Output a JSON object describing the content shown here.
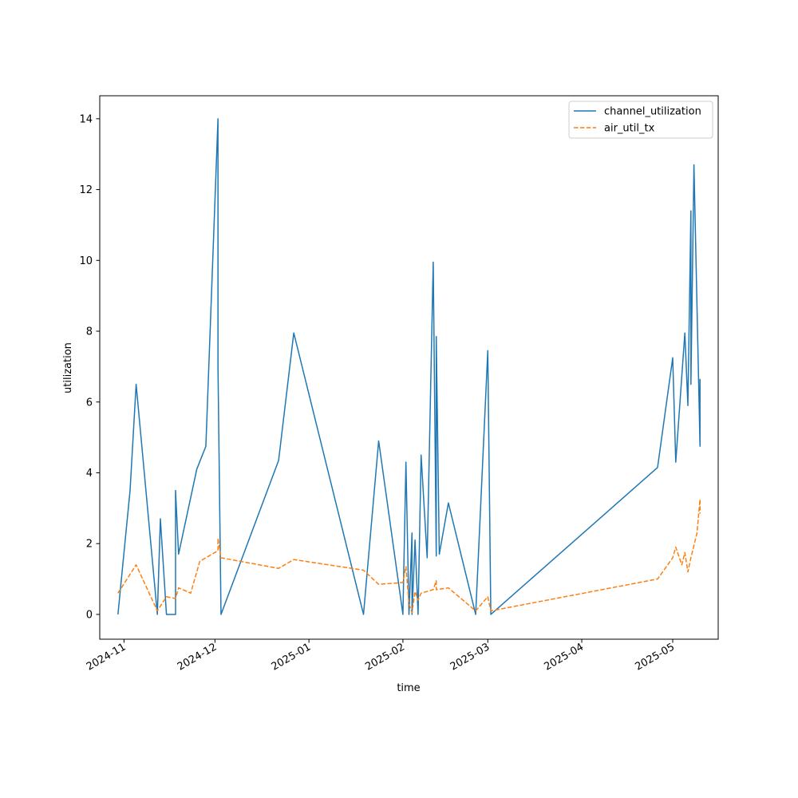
{
  "chart_data": {
    "type": "line",
    "title": "",
    "xlabel": "time",
    "ylabel": "utilization",
    "x_ticks": [
      "2024-11",
      "2024-12",
      "2025-01",
      "2025-02",
      "2025-03",
      "2025-04",
      "2025-05"
    ],
    "y_ticks": [
      "0",
      "2",
      "4",
      "6",
      "8",
      "10",
      "12",
      "14"
    ],
    "xlim": [
      "2024-10-24",
      "2025-05-16"
    ],
    "ylim": [
      -0.7,
      14.65
    ],
    "grid": false,
    "legend_position": "top-right",
    "series": [
      {
        "name": "channel_utilization",
        "color": "#1f77b4",
        "dash": "solid",
        "points": [
          [
            "2024-10-30",
            0.0
          ],
          [
            "2024-11-03",
            3.5
          ],
          [
            "2024-11-05",
            6.5
          ],
          [
            "2024-11-12",
            0.0
          ],
          [
            "2024-11-13",
            2.7
          ],
          [
            "2024-11-15",
            0.0
          ],
          [
            "2024-11-18",
            0.0
          ],
          [
            "2024-11-18",
            3.5
          ],
          [
            "2024-11-19",
            1.7
          ],
          [
            "2024-11-25",
            4.1
          ],
          [
            "2024-11-28",
            4.75
          ],
          [
            "2024-12-02",
            14.0
          ],
          [
            "2024-12-02",
            7.0
          ],
          [
            "2024-12-03",
            0.0
          ],
          [
            "2024-12-22",
            4.35
          ],
          [
            "2024-12-27",
            7.95
          ],
          [
            "2025-01-19",
            0.0
          ],
          [
            "2025-01-24",
            4.9
          ],
          [
            "2025-02-01",
            0.0
          ],
          [
            "2025-02-02",
            4.3
          ],
          [
            "2025-02-03",
            0.0
          ],
          [
            "2025-02-04",
            2.3
          ],
          [
            "2025-02-04",
            0.0
          ],
          [
            "2025-02-05",
            2.1
          ],
          [
            "2025-02-06",
            0.0
          ],
          [
            "2025-02-07",
            4.5
          ],
          [
            "2025-02-09",
            1.6
          ],
          [
            "2025-02-11",
            9.95
          ],
          [
            "2025-02-12",
            1.65
          ],
          [
            "2025-02-12",
            7.85
          ],
          [
            "2025-02-13",
            1.7
          ],
          [
            "2025-02-16",
            3.15
          ],
          [
            "2025-02-25",
            0.0
          ],
          [
            "2025-03-01",
            7.45
          ],
          [
            "2025-03-02",
            0.0
          ],
          [
            "2025-04-26",
            4.15
          ],
          [
            "2025-05-01",
            7.25
          ],
          [
            "2025-05-02",
            4.3
          ],
          [
            "2025-05-05",
            7.95
          ],
          [
            "2025-05-06",
            5.9
          ],
          [
            "2025-05-07",
            11.4
          ],
          [
            "2025-05-07",
            6.5
          ],
          [
            "2025-05-08",
            12.7
          ],
          [
            "2025-05-10",
            4.75
          ],
          [
            "2025-05-10",
            6.65
          ]
        ]
      },
      {
        "name": "air_util_tx",
        "color": "#ff7f0e",
        "dash": "dashed",
        "points": [
          [
            "2024-10-30",
            0.6
          ],
          [
            "2024-11-05",
            1.4
          ],
          [
            "2024-11-12",
            0.1
          ],
          [
            "2024-11-15",
            0.5
          ],
          [
            "2024-11-18",
            0.45
          ],
          [
            "2024-11-19",
            0.75
          ],
          [
            "2024-11-23",
            0.6
          ],
          [
            "2024-11-26",
            1.5
          ],
          [
            "2024-12-02",
            1.8
          ],
          [
            "2024-12-02",
            2.15
          ],
          [
            "2024-12-03",
            1.6
          ],
          [
            "2024-12-22",
            1.3
          ],
          [
            "2024-12-27",
            1.55
          ],
          [
            "2025-01-19",
            1.25
          ],
          [
            "2025-01-24",
            0.85
          ],
          [
            "2025-02-01",
            0.9
          ],
          [
            "2025-02-02",
            1.35
          ],
          [
            "2025-02-03",
            0.3
          ],
          [
            "2025-02-04",
            0.05
          ],
          [
            "2025-02-05",
            0.65
          ],
          [
            "2025-02-06",
            0.4
          ],
          [
            "2025-02-07",
            0.6
          ],
          [
            "2025-02-11",
            0.7
          ],
          [
            "2025-02-12",
            0.95
          ],
          [
            "2025-02-12",
            0.7
          ],
          [
            "2025-02-16",
            0.75
          ],
          [
            "2025-02-25",
            0.1
          ],
          [
            "2025-03-01",
            0.5
          ],
          [
            "2025-03-02",
            0.1
          ],
          [
            "2025-04-26",
            1.0
          ],
          [
            "2025-05-01",
            1.6
          ],
          [
            "2025-05-02",
            1.9
          ],
          [
            "2025-05-04",
            1.4
          ],
          [
            "2025-05-05",
            1.75
          ],
          [
            "2025-05-06",
            1.2
          ],
          [
            "2025-05-07",
            1.6
          ],
          [
            "2025-05-09",
            2.3
          ],
          [
            "2025-05-10",
            3.25
          ],
          [
            "2025-05-10",
            2.85
          ]
        ]
      }
    ]
  }
}
